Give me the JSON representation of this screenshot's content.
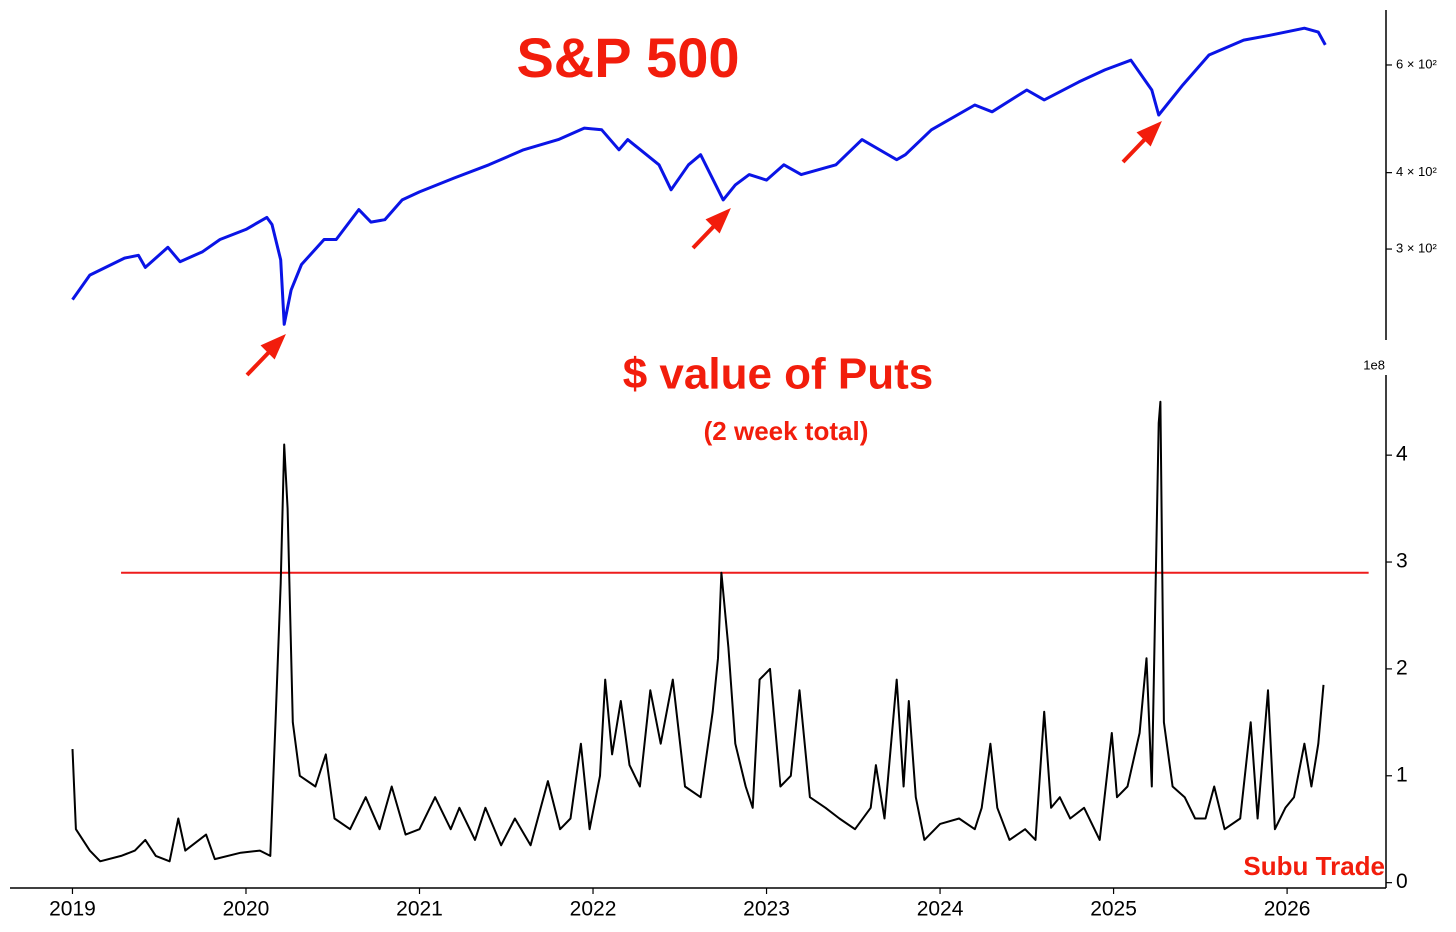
{
  "chart_data": [
    {
      "type": "line",
      "title": "S&P 500",
      "log_scale": true,
      "xlim": [
        2018.64,
        2026.57
      ],
      "ylim": [
        213,
        738
      ],
      "yticks": [
        {
          "value": 300,
          "label": "3 × 10²"
        },
        {
          "value": 400,
          "label": "4 × 10²"
        },
        {
          "value": 600,
          "label": "6 × 10²"
        }
      ],
      "x": [
        2019.0,
        2019.1,
        2019.3,
        2019.38,
        2019.42,
        2019.55,
        2019.62,
        2019.75,
        2019.85,
        2020.0,
        2020.12,
        2020.15,
        2020.2,
        2020.22,
        2020.26,
        2020.32,
        2020.45,
        2020.52,
        2020.65,
        2020.72,
        2020.8,
        2020.9,
        2021.0,
        2021.2,
        2021.4,
        2021.6,
        2021.8,
        2021.95,
        2022.05,
        2022.15,
        2022.2,
        2022.38,
        2022.45,
        2022.55,
        2022.62,
        2022.75,
        2022.82,
        2022.9,
        2023.0,
        2023.1,
        2023.2,
        2023.4,
        2023.55,
        2023.75,
        2023.8,
        2023.95,
        2024.2,
        2024.3,
        2024.5,
        2024.6,
        2024.8,
        2024.95,
        2025.1,
        2025.22,
        2025.26,
        2025.4,
        2025.55,
        2025.75,
        2025.9,
        2026.1,
        2026.18,
        2026.22
      ],
      "series": [
        {
          "name": "S&P 500",
          "color": "#0a14e6",
          "values": [
            248,
            272,
            290,
            293,
            280,
            302,
            286,
            297,
            311,
            323,
            338,
            329,
            288,
            226,
            257,
            283,
            311,
            311,
            348,
            332,
            335,
            361,
            372,
            392,
            412,
            436,
            453,
            473,
            470,
            436,
            453,
            412,
            375,
            412,
            428,
            361,
            382,
            397,
            389,
            412,
            397,
            412,
            453,
            420,
            428,
            470,
            516,
            503,
            546,
            526,
            563,
            589,
            611,
            546,
            497,
            557,
            623,
            659,
            671,
            689,
            679,
            647
          ]
        }
      ]
    },
    {
      "type": "line",
      "title": "$ value of Puts",
      "subtitle": "(2 week total)",
      "offset_label": "1e8",
      "annotation": "Subu Trade",
      "xlim": [
        2018.64,
        2026.57
      ],
      "ylim": [
        -0.05,
        4.75
      ],
      "yticks": [
        0,
        1,
        2,
        3,
        4
      ],
      "xticks": [
        2019,
        2020,
        2021,
        2022,
        2023,
        2024,
        2025,
        2026
      ],
      "hline": {
        "value": 2.9,
        "x": [
          2019.28,
          2026.47
        ],
        "color": "#ee1c1c"
      },
      "x": [
        2019.0,
        2019.02,
        2019.1,
        2019.16,
        2019.28,
        2019.36,
        2019.42,
        2019.48,
        2019.56,
        2019.61,
        2019.65,
        2019.77,
        2019.82,
        2019.97,
        2020.08,
        2020.14,
        2020.17,
        2020.2,
        2020.22,
        2020.24,
        2020.27,
        2020.31,
        2020.4,
        2020.46,
        2020.51,
        2020.6,
        2020.69,
        2020.77,
        2020.84,
        2020.92,
        2021.0,
        2021.09,
        2021.18,
        2021.23,
        2021.32,
        2021.38,
        2021.47,
        2021.55,
        2021.64,
        2021.74,
        2021.81,
        2021.87,
        2021.93,
        2021.98,
        2022.04,
        2022.07,
        2022.11,
        2022.16,
        2022.21,
        2022.27,
        2022.33,
        2022.39,
        2022.46,
        2022.53,
        2022.62,
        2022.69,
        2022.72,
        2022.74,
        2022.78,
        2022.82,
        2022.88,
        2022.92,
        2022.96,
        2023.02,
        2023.08,
        2023.14,
        2023.19,
        2023.25,
        2023.34,
        2023.42,
        2023.51,
        2023.6,
        2023.63,
        2023.68,
        2023.75,
        2023.79,
        2023.82,
        2023.86,
        2023.91,
        2024.0,
        2024.11,
        2024.2,
        2024.24,
        2024.29,
        2024.33,
        2024.4,
        2024.49,
        2024.55,
        2024.6,
        2024.64,
        2024.69,
        2024.75,
        2024.83,
        2024.92,
        2024.99,
        2025.02,
        2025.08,
        2025.15,
        2025.19,
        2025.22,
        2025.26,
        2025.27,
        2025.29,
        2025.34,
        2025.41,
        2025.47,
        2025.53,
        2025.58,
        2025.64,
        2025.73,
        2025.79,
        2025.83,
        2025.89,
        2025.93,
        2025.99,
        2026.04,
        2026.1,
        2026.14,
        2026.18,
        2026.21
      ],
      "series": [
        {
          "name": "$ value of Puts",
          "color": "#000000",
          "values": [
            1.25,
            0.5,
            0.3,
            0.2,
            0.25,
            0.3,
            0.4,
            0.25,
            0.2,
            0.6,
            0.3,
            0.45,
            0.22,
            0.28,
            0.3,
            0.25,
            1.5,
            2.8,
            4.1,
            3.5,
            1.5,
            1.0,
            0.9,
            1.2,
            0.6,
            0.5,
            0.8,
            0.5,
            0.9,
            0.45,
            0.5,
            0.8,
            0.5,
            0.7,
            0.4,
            0.7,
            0.35,
            0.6,
            0.35,
            0.95,
            0.5,
            0.6,
            1.3,
            0.5,
            1.0,
            1.9,
            1.2,
            1.7,
            1.1,
            0.9,
            1.8,
            1.3,
            1.9,
            0.9,
            0.8,
            1.6,
            2.1,
            2.9,
            2.2,
            1.3,
            0.9,
            0.7,
            1.9,
            2.0,
            0.9,
            1.0,
            1.8,
            0.8,
            0.7,
            0.6,
            0.5,
            0.7,
            1.1,
            0.6,
            1.9,
            0.9,
            1.7,
            0.8,
            0.4,
            0.55,
            0.6,
            0.5,
            0.7,
            1.3,
            0.7,
            0.4,
            0.5,
            0.4,
            1.6,
            0.7,
            0.8,
            0.6,
            0.7,
            0.4,
            1.4,
            0.8,
            0.9,
            1.4,
            2.1,
            0.9,
            4.3,
            4.5,
            1.5,
            0.9,
            0.8,
            0.6,
            0.6,
            0.9,
            0.5,
            0.6,
            1.5,
            0.6,
            1.8,
            0.5,
            0.7,
            0.8,
            1.3,
            0.9,
            1.3,
            1.85
          ]
        }
      ]
    }
  ]
}
